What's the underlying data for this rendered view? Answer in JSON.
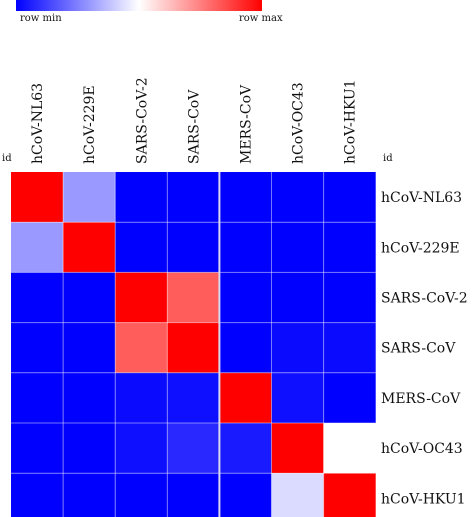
{
  "legend": {
    "min_label": "row min",
    "max_label": "row max",
    "min_color": "#0000ff",
    "mid_color": "#ffffff",
    "max_color": "#ff0000"
  },
  "id_left": "id",
  "id_right": "id",
  "chart_data": {
    "type": "heatmap",
    "columns": [
      "hCoV-NL63",
      "hCoV-229E",
      "SARS-CoV-2",
      "SARS-CoV",
      "MERS-CoV",
      "hCoV-OC43",
      "hCoV-HKU1"
    ],
    "rows": [
      "hCoV-NL63",
      "hCoV-229E",
      "SARS-CoV-2",
      "SARS-CoV",
      "MERS-CoV",
      "hCoV-OC43",
      "hCoV-HKU1"
    ],
    "color_scale": "row min (blue) to row max (red)",
    "values": [
      [
        1.0,
        0.3,
        0.0,
        0.0,
        0.0,
        0.0,
        0.0
      ],
      [
        0.3,
        1.0,
        0.0,
        0.0,
        0.0,
        0.0,
        0.0
      ],
      [
        0.0,
        0.0,
        1.0,
        0.82,
        0.0,
        0.0,
        0.0
      ],
      [
        0.0,
        0.0,
        0.82,
        1.0,
        0.0,
        0.02,
        0.02
      ],
      [
        0.0,
        0.0,
        0.02,
        0.03,
        1.0,
        0.03,
        0.0
      ],
      [
        0.0,
        0.0,
        0.03,
        0.08,
        0.05,
        1.0,
        0.5
      ],
      [
        0.0,
        0.0,
        0.0,
        0.0,
        0.0,
        0.43,
        1.0
      ]
    ]
  }
}
